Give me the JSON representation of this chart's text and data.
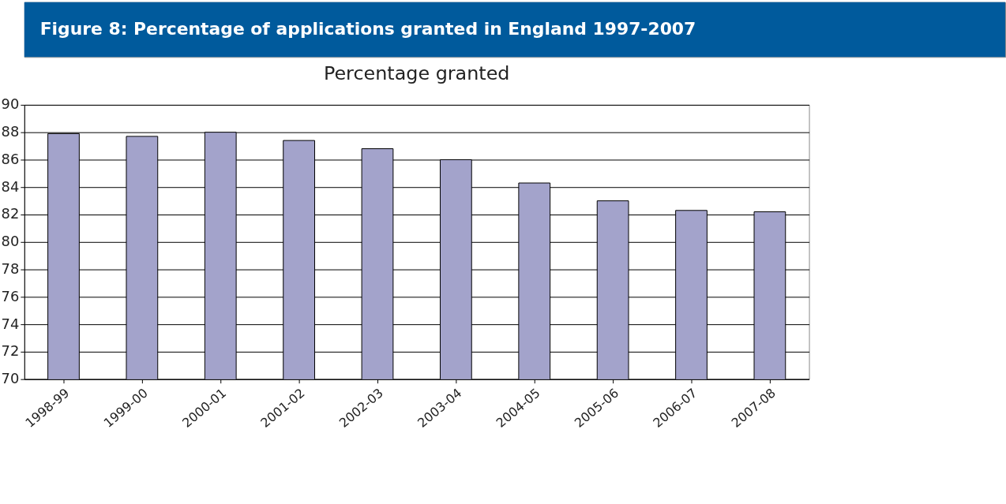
{
  "chart_data": {
    "type": "bar",
    "title": "Figure 8: Percentage of applications granted in England 1997-2007",
    "subtitle": "Percentage granted",
    "categories": [
      "1998-99",
      "1999-00",
      "2000-01",
      "2001-02",
      "2002-03",
      "2003-04",
      "2004-05",
      "2005-06",
      "2006-07",
      "2007-08"
    ],
    "values": [
      87.9,
      87.7,
      88.0,
      87.4,
      86.8,
      86.0,
      84.3,
      83.0,
      82.3,
      82.2
    ],
    "color": "#a3a3cb",
    "ylim": [
      70,
      90
    ],
    "yticks": [
      70,
      72,
      74,
      76,
      78,
      80,
      82,
      84,
      86,
      88,
      90
    ],
    "grid": "y"
  }
}
